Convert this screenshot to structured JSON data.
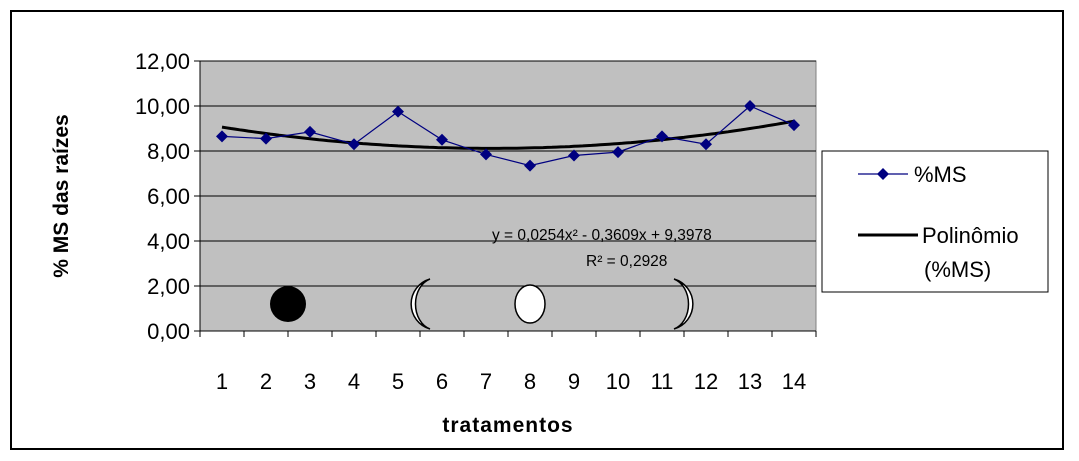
{
  "chart_data": {
    "type": "line",
    "xlabel": "tratamentos",
    "ylabel": "% MS das raízes",
    "x": [
      "1",
      "2",
      "3",
      "4",
      "5",
      "6",
      "7",
      "8",
      "9",
      "10",
      "11",
      "12",
      "13",
      "14"
    ],
    "ylim": [
      0,
      12
    ],
    "yticks": [
      "0,00",
      "2,00",
      "4,00",
      "6,00",
      "8,00",
      "10,00",
      "12,00"
    ],
    "grid": true,
    "legend_position": "right",
    "series": [
      {
        "name": "%MS",
        "marker": "diamond",
        "color": "#000080",
        "values": [
          8.65,
          8.55,
          8.85,
          8.3,
          9.75,
          8.5,
          7.85,
          7.35,
          7.8,
          7.95,
          8.65,
          8.3,
          10.0,
          9.15
        ]
      }
    ],
    "trendline": {
      "name": "Polinômio (%MS)",
      "legend_line1": "Polinômio",
      "legend_line2": "(%MS)",
      "color": "#000000",
      "coefficients": [
        0.0254,
        -0.3609,
        9.3978
      ],
      "equation": "y = 0,0254x² - 0,3609x + 9,3978",
      "r2": "R² = 0,2928"
    },
    "moon_phases": [
      {
        "position": 2.5,
        "phase": "new"
      },
      {
        "position": 5.5,
        "phase": "crescent"
      },
      {
        "position": 8.0,
        "phase": "full"
      },
      {
        "position": 11.5,
        "phase": "waning"
      }
    ]
  }
}
